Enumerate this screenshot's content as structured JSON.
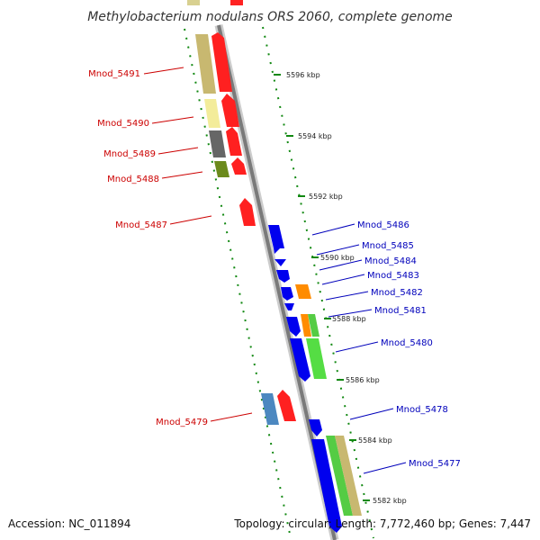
{
  "title": "Methylobacterium nodulans ORS 2060, complete genome",
  "footer": {
    "accession": "Accession: NC_011894",
    "topology": "Topology: circular; Length: 7,772,460 bp; Genes: 7,447"
  },
  "colors": {
    "left_label": "#cc0000",
    "right_label": "#0000bb",
    "backbone": "#999999",
    "ruler_dots": "#118811"
  },
  "ticks": [
    "5596 kbp",
    "5594 kbp",
    "5592 kbp",
    "5590 kbp",
    "5588 kbp",
    "5586 kbp",
    "5584 kbp",
    "5582 kbp"
  ],
  "left_labels": [
    "Mnod_5491",
    "Mnod_5490",
    "Mnod_5489",
    "Mnod_5488",
    "Mnod_5487",
    "Mnod_5479"
  ],
  "right_labels": [
    "Mnod_5486",
    "Mnod_5485",
    "Mnod_5484",
    "Mnod_5483",
    "Mnod_5482",
    "Mnod_5481",
    "Mnod_5480",
    "Mnod_5478",
    "Mnod_5477"
  ]
}
